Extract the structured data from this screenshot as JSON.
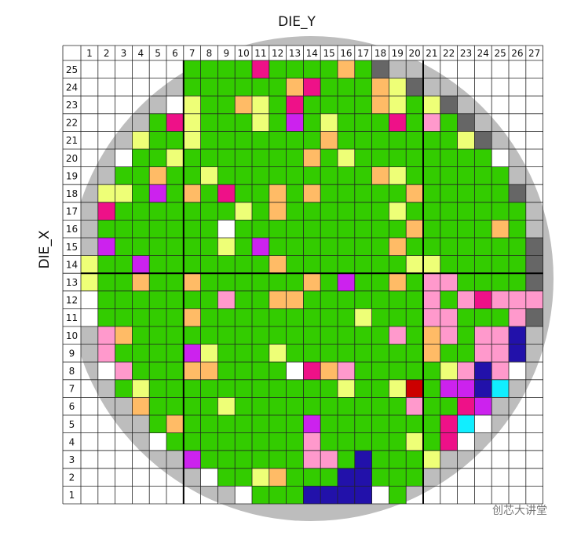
{
  "chart_data": {
    "type": "wafer_map",
    "x_label": "DIE_Y",
    "y_label": "DIE_X",
    "x": [
      1,
      2,
      3,
      4,
      5,
      6,
      7,
      8,
      9,
      10,
      11,
      12,
      13,
      14,
      15,
      16,
      17,
      18,
      19,
      20,
      21,
      22,
      23,
      24,
      25,
      26,
      27
    ],
    "y": [
      25,
      24,
      23,
      22,
      21,
      20,
      19,
      18,
      17,
      16,
      15,
      14,
      13,
      12,
      11,
      10,
      9,
      8,
      7,
      6,
      5,
      4,
      3,
      2,
      1
    ],
    "wafer_color": "#bdbdbd",
    "cells": [
      [
        null,
        null,
        null,
        null,
        null,
        null,
        "#3c0",
        "#3c0",
        "#3c0",
        "#3c0",
        "#e18",
        "#3c0",
        "#3c0",
        "#3c0",
        "#3c0",
        "#fb6",
        "#3c0",
        "#666",
        null,
        null,
        null,
        null,
        null,
        null,
        null,
        null,
        null
      ],
      [
        null,
        null,
        null,
        null,
        null,
        null,
        "#3c0",
        "#3c0",
        "#3c0",
        "#3c0",
        "#3c0",
        "#3c0",
        "#fb6",
        "#e18",
        "#3c0",
        "#3c0",
        "#3c0",
        "#fb6",
        "#ef7",
        "#666",
        null,
        null,
        null,
        null,
        null,
        null,
        null
      ],
      [
        null,
        null,
        null,
        null,
        null,
        "#fff",
        "#ef7",
        "#3c0",
        "#3c0",
        "#fb6",
        "#ef7",
        "#3c0",
        "#e18",
        "#3c0",
        "#3c0",
        "#3c0",
        "#3c0",
        "#fb6",
        "#ef7",
        "#3c0",
        "#ef7",
        "#666",
        null,
        null,
        null,
        null,
        null
      ],
      [
        null,
        null,
        null,
        null,
        "#3c0",
        "#e18",
        "#ef7",
        "#3c0",
        "#3c0",
        "#3c0",
        "#ef7",
        "#3c0",
        "#c2e",
        "#3c0",
        "#ef7",
        "#3c0",
        "#3c0",
        "#3c0",
        "#e18",
        "#3c0",
        "#f9c",
        "#3c0",
        "#666",
        null,
        null,
        null,
        null
      ],
      [
        null,
        null,
        null,
        "#ef7",
        "#3c0",
        "#3c0",
        "#ef7",
        "#3c0",
        "#3c0",
        "#3c0",
        "#3c0",
        "#3c0",
        "#3c0",
        "#3c0",
        "#fb6",
        "#3c0",
        "#3c0",
        "#3c0",
        "#3c0",
        "#3c0",
        "#3c0",
        "#3c0",
        "#ef7",
        "#666",
        null,
        null,
        null
      ],
      [
        null,
        null,
        "#fff",
        "#3c0",
        "#3c0",
        "#ef7",
        "#3c0",
        "#3c0",
        "#3c0",
        "#3c0",
        "#3c0",
        "#3c0",
        "#3c0",
        "#fb6",
        "#3c0",
        "#ef7",
        "#3c0",
        "#3c0",
        "#3c0",
        "#3c0",
        "#3c0",
        "#3c0",
        "#3c0",
        "#3c0",
        "#fff",
        null,
        null
      ],
      [
        null,
        null,
        "#3c0",
        "#3c0",
        "#fb6",
        "#3c0",
        "#3c0",
        "#ef7",
        "#3c0",
        "#3c0",
        "#3c0",
        "#3c0",
        "#3c0",
        "#3c0",
        "#3c0",
        "#3c0",
        "#3c0",
        "#fb6",
        "#ef7",
        "#3c0",
        "#3c0",
        "#3c0",
        "#3c0",
        "#3c0",
        "#3c0",
        null,
        null
      ],
      [
        null,
        "#ef7",
        "#ef7",
        "#3c0",
        "#c2e",
        "#3c0",
        "#fb6",
        "#3c0",
        "#e18",
        "#3c0",
        "#3c0",
        "#fb6",
        "#3c0",
        "#fb6",
        "#3c0",
        "#3c0",
        "#3c0",
        "#3c0",
        "#3c0",
        "#fb6",
        "#3c0",
        "#3c0",
        "#3c0",
        "#3c0",
        "#3c0",
        "#666",
        null
      ],
      [
        null,
        "#e18",
        "#3c0",
        "#3c0",
        "#3c0",
        "#3c0",
        "#3c0",
        "#3c0",
        "#3c0",
        "#ef7",
        "#3c0",
        "#fb6",
        "#3c0",
        "#3c0",
        "#3c0",
        "#3c0",
        "#3c0",
        "#3c0",
        "#ef7",
        "#3c0",
        "#3c0",
        "#3c0",
        "#3c0",
        "#3c0",
        "#3c0",
        "#3c0",
        null
      ],
      [
        null,
        "#3c0",
        "#3c0",
        "#3c0",
        "#3c0",
        "#3c0",
        "#3c0",
        "#3c0",
        "#fff",
        "#3c0",
        "#3c0",
        "#3c0",
        "#3c0",
        "#3c0",
        "#3c0",
        "#3c0",
        "#3c0",
        "#3c0",
        "#3c0",
        "#fb6",
        "#3c0",
        "#3c0",
        "#3c0",
        "#3c0",
        "#fb6",
        "#3c0",
        null
      ],
      [
        null,
        "#c2e",
        "#3c0",
        "#3c0",
        "#3c0",
        "#3c0",
        "#3c0",
        "#3c0",
        "#ef7",
        "#3c0",
        "#c2e",
        "#3c0",
        "#3c0",
        "#3c0",
        "#3c0",
        "#3c0",
        "#3c0",
        "#3c0",
        "#fb6",
        "#3c0",
        "#3c0",
        "#3c0",
        "#3c0",
        "#3c0",
        "#3c0",
        "#3c0",
        "#666"
      ],
      [
        "#ef7",
        "#3c0",
        "#3c0",
        "#c2e",
        "#3c0",
        "#3c0",
        "#3c0",
        "#3c0",
        "#3c0",
        "#3c0",
        "#3c0",
        "#fb6",
        "#3c0",
        "#3c0",
        "#3c0",
        "#3c0",
        "#3c0",
        "#3c0",
        "#3c0",
        "#ef7",
        "#ef7",
        "#3c0",
        "#3c0",
        "#3c0",
        "#3c0",
        "#3c0",
        "#666"
      ],
      [
        "#ef7",
        "#3c0",
        "#3c0",
        "#fb6",
        "#3c0",
        "#3c0",
        "#fb6",
        "#3c0",
        "#3c0",
        "#3c0",
        "#3c0",
        "#3c0",
        "#3c0",
        "#fb6",
        "#3c0",
        "#c2e",
        "#3c0",
        "#3c0",
        "#fb6",
        "#3c0",
        "#f9c",
        "#f9c",
        "#3c0",
        "#3c0",
        "#3c0",
        "#3c0",
        "#666"
      ],
      [
        "#fff",
        "#3c0",
        "#3c0",
        "#3c0",
        "#3c0",
        "#3c0",
        "#3c0",
        "#3c0",
        "#f9c",
        "#3c0",
        "#3c0",
        "#fb6",
        "#fb6",
        "#3c0",
        "#3c0",
        "#3c0",
        "#3c0",
        "#3c0",
        "#3c0",
        "#3c0",
        "#f9c",
        "#3c0",
        "#f9c",
        "#e18",
        "#f9c",
        "#f9c",
        "#f9c"
      ],
      [
        "#fff",
        "#3c0",
        "#3c0",
        "#3c0",
        "#3c0",
        "#3c0",
        "#fb6",
        "#3c0",
        "#3c0",
        "#3c0",
        "#3c0",
        "#3c0",
        "#3c0",
        "#3c0",
        "#3c0",
        "#3c0",
        "#ef7",
        "#3c0",
        "#3c0",
        "#3c0",
        "#f9c",
        "#f9c",
        "#3c0",
        "#3c0",
        "#3c0",
        "#f9c",
        "#666"
      ],
      [
        null,
        "#f9c",
        "#fb6",
        "#3c0",
        "#3c0",
        "#3c0",
        "#3c0",
        "#3c0",
        "#3c0",
        "#3c0",
        "#3c0",
        "#3c0",
        "#3c0",
        "#3c0",
        "#3c0",
        "#3c0",
        "#3c0",
        "#3c0",
        "#f9c",
        "#3c0",
        "#fb6",
        "#f9c",
        "#3c0",
        "#f9c",
        "#f9c",
        "#21a",
        null
      ],
      [
        null,
        "#f9c",
        "#3c0",
        "#3c0",
        "#3c0",
        "#3c0",
        "#c2e",
        "#ef7",
        "#3c0",
        "#3c0",
        "#3c0",
        "#ef7",
        "#3c0",
        "#3c0",
        "#3c0",
        "#3c0",
        "#3c0",
        "#3c0",
        "#3c0",
        "#3c0",
        "#fb6",
        "#3c0",
        "#3c0",
        "#f9c",
        "#f9c",
        "#21a",
        null
      ],
      [
        null,
        "#fff",
        "#f9c",
        "#3c0",
        "#3c0",
        "#3c0",
        "#fb6",
        "#fb6",
        "#3c0",
        "#3c0",
        "#3c0",
        "#3c0",
        "#fff",
        "#e18",
        "#fb6",
        "#f9c",
        "#3c0",
        "#3c0",
        "#3c0",
        "#3c0",
        "#3c0",
        "#ef7",
        "#f9c",
        "#21a",
        "#f9c",
        "#fff",
        null
      ],
      [
        null,
        null,
        "#3c0",
        "#ef7",
        "#3c0",
        "#3c0",
        "#3c0",
        "#3c0",
        "#3c0",
        "#3c0",
        "#3c0",
        "#3c0",
        "#3c0",
        "#3c0",
        "#3c0",
        "#ef7",
        "#3c0",
        "#3c0",
        "#ef7",
        "#c00",
        "#3c0",
        "#c2e",
        "#c2e",
        "#21a",
        "#1ef",
        null,
        null
      ],
      [
        null,
        null,
        null,
        "#fb6",
        "#3c0",
        "#3c0",
        "#3c0",
        "#3c0",
        "#ef7",
        "#3c0",
        "#3c0",
        "#3c0",
        "#3c0",
        "#3c0",
        "#3c0",
        "#3c0",
        "#3c0",
        "#3c0",
        "#3c0",
        "#f9c",
        "#3c0",
        "#3c0",
        "#e18",
        "#c2e",
        null,
        null,
        null
      ],
      [
        null,
        null,
        null,
        null,
        "#3c0",
        "#fb6",
        "#3c0",
        "#3c0",
        "#3c0",
        "#3c0",
        "#3c0",
        "#3c0",
        "#3c0",
        "#c2e",
        "#3c0",
        "#3c0",
        "#3c0",
        "#3c0",
        "#3c0",
        "#3c0",
        "#3c0",
        "#e18",
        "#1ef",
        "#fff",
        null,
        null,
        null
      ],
      [
        null,
        null,
        null,
        null,
        "#fff",
        "#3c0",
        "#3c0",
        "#3c0",
        "#3c0",
        "#3c0",
        "#3c0",
        "#3c0",
        "#3c0",
        "#f9c",
        "#3c0",
        "#3c0",
        "#3c0",
        "#3c0",
        "#3c0",
        "#ef7",
        "#3c0",
        "#e18",
        "#fff",
        null,
        null,
        null,
        null
      ],
      [
        null,
        null,
        null,
        null,
        null,
        null,
        "#c2e",
        "#3c0",
        "#3c0",
        "#3c0",
        "#3c0",
        "#3c0",
        "#3c0",
        "#f9c",
        "#f9c",
        "#3c0",
        "#21a",
        "#3c0",
        "#3c0",
        "#3c0",
        "#ef7",
        null,
        null,
        null,
        null,
        null,
        null
      ],
      [
        null,
        null,
        null,
        null,
        null,
        null,
        null,
        "#fff",
        "#3c0",
        "#3c0",
        "#ef7",
        "#fb6",
        "#3c0",
        "#3c0",
        "#3c0",
        "#21a",
        "#21a",
        "#3c0",
        "#3c0",
        "#3c0",
        null,
        null,
        null,
        null,
        null,
        null,
        null
      ],
      [
        null,
        null,
        null,
        null,
        null,
        null,
        null,
        null,
        null,
        "#fff",
        "#3c0",
        "#3c0",
        "#3c0",
        "#21a",
        "#21a",
        "#21a",
        "#21a",
        "#fff",
        "#3c0",
        null,
        null,
        null,
        null,
        null,
        null,
        null,
        null
      ]
    ]
  },
  "watermark": "创芯大讲堂"
}
